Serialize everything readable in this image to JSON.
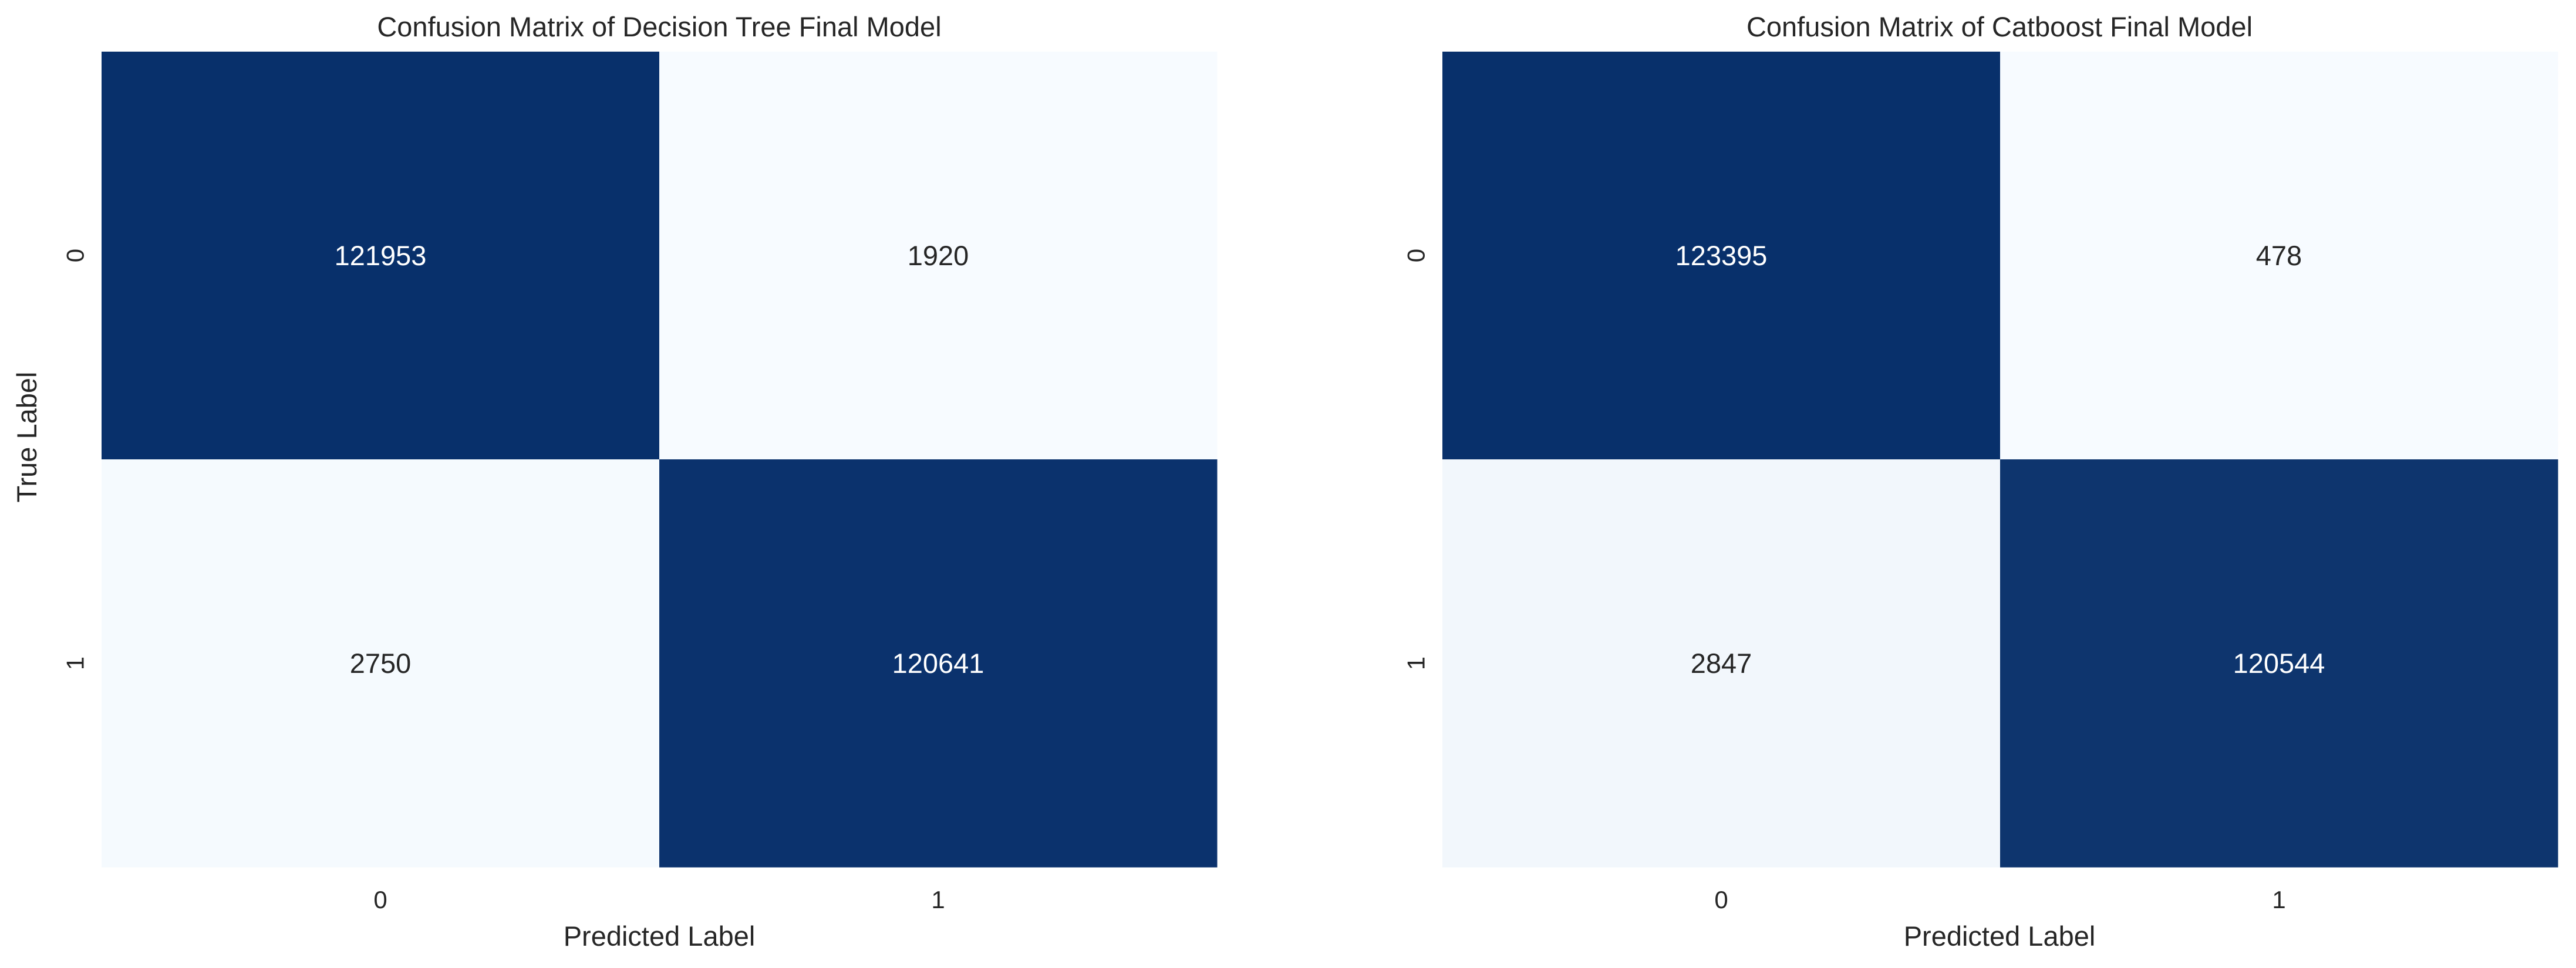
{
  "chart_data": [
    {
      "type": "heatmap",
      "title": "Confusion Matrix of Decision Tree Final Model",
      "xlabel": "Predicted Label",
      "ylabel": "True Label",
      "x_categories": [
        "0",
        "1"
      ],
      "y_categories": [
        "0",
        "1"
      ],
      "values": [
        [
          121953,
          1920
        ],
        [
          2750,
          120641
        ]
      ],
      "colormap": "Blues",
      "colorbar": false,
      "annotations": true
    },
    {
      "type": "heatmap",
      "title": "Confusion Matrix of Catboost Final Model",
      "xlabel": "Predicted Label",
      "ylabel": "",
      "x_categories": [
        "0",
        "1"
      ],
      "y_categories": [
        "0",
        "1"
      ],
      "values": [
        [
          123395,
          478
        ],
        [
          2847,
          120544
        ]
      ],
      "colormap": "Blues",
      "colorbar": false,
      "annotations": true
    }
  ],
  "colors": {
    "low": "#f7fbff",
    "high": "#08306b",
    "text_on_dark": "#ffffff",
    "text_on_light": "#262626"
  }
}
